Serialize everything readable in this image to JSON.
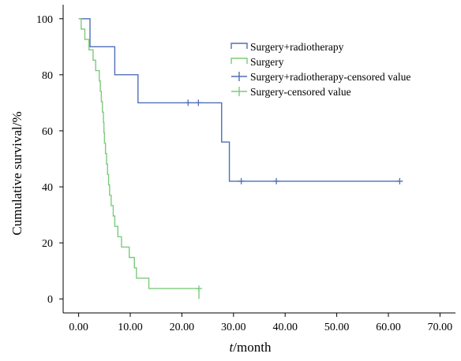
{
  "chart_data": {
    "type": "line",
    "subtype": "kaplan-meier step plot",
    "title": "",
    "xlabel": {
      "italic_part": "t",
      "rest": "/month"
    },
    "ylabel": "Cumulative survival/%",
    "xlim": [
      -3,
      73
    ],
    "ylim": [
      -5,
      105
    ],
    "x_ticks": [
      0,
      10,
      20,
      30,
      40,
      50,
      60,
      70
    ],
    "x_tick_labels": [
      "0.00",
      "10.00",
      "20.00",
      "30.00",
      "40.00",
      "50.00",
      "60.00",
      "70.00"
    ],
    "y_ticks": [
      0,
      20,
      40,
      60,
      80,
      100
    ],
    "y_tick_labels": [
      "0",
      "20",
      "40",
      "60",
      "80",
      "100"
    ],
    "grid": false,
    "legend_position": "top-right",
    "colors": {
      "surgery_radiotherapy": "#4F6FB8",
      "surgery": "#7CCB7C",
      "axis": "#000000"
    },
    "legend": [
      {
        "label": "Surgery+radiotherapy",
        "kind": "step",
        "color_key": "surgery_radiotherapy"
      },
      {
        "label": "Surgery",
        "kind": "step",
        "color_key": "surgery"
      },
      {
        "label": "Surgery+radiotherapy-censored value",
        "kind": "censor",
        "color_key": "surgery_radiotherapy"
      },
      {
        "label": "Surgery-censored value",
        "kind": "censor",
        "color_key": "surgery"
      }
    ],
    "series": [
      {
        "name": "Surgery+radiotherapy",
        "color_key": "surgery_radiotherapy",
        "steps": [
          {
            "x": 0,
            "y": 100
          },
          {
            "x": 2.2,
            "y": 90
          },
          {
            "x": 7,
            "y": 80
          },
          {
            "x": 11.5,
            "y": 70
          },
          {
            "x": 27.7,
            "y": 56
          },
          {
            "x": 29.2,
            "y": 42
          },
          {
            "x": 62.2,
            "y": 42
          }
        ],
        "censored": [
          {
            "x": 21.2,
            "y": 70
          },
          {
            "x": 23.2,
            "y": 70
          },
          {
            "x": 31.5,
            "y": 42
          },
          {
            "x": 38.3,
            "y": 42
          },
          {
            "x": 62.2,
            "y": 42
          }
        ]
      },
      {
        "name": "Surgery",
        "color_key": "surgery",
        "steps": [
          {
            "x": 0,
            "y": 100
          },
          {
            "x": 0.5,
            "y": 96.3
          },
          {
            "x": 1.2,
            "y": 92.6
          },
          {
            "x": 2.0,
            "y": 88.9
          },
          {
            "x": 2.8,
            "y": 85.2
          },
          {
            "x": 3.3,
            "y": 81.5
          },
          {
            "x": 4.0,
            "y": 77.8
          },
          {
            "x": 4.2,
            "y": 74.1
          },
          {
            "x": 4.4,
            "y": 70.4
          },
          {
            "x": 4.6,
            "y": 66.7
          },
          {
            "x": 4.8,
            "y": 63.0
          },
          {
            "x": 4.9,
            "y": 59.3
          },
          {
            "x": 5.0,
            "y": 55.6
          },
          {
            "x": 5.2,
            "y": 51.9
          },
          {
            "x": 5.4,
            "y": 48.1
          },
          {
            "x": 5.6,
            "y": 44.4
          },
          {
            "x": 5.8,
            "y": 40.7
          },
          {
            "x": 6.0,
            "y": 37.0
          },
          {
            "x": 6.3,
            "y": 33.3
          },
          {
            "x": 6.7,
            "y": 29.6
          },
          {
            "x": 7.0,
            "y": 25.9
          },
          {
            "x": 7.6,
            "y": 22.2
          },
          {
            "x": 8.3,
            "y": 18.5
          },
          {
            "x": 9.8,
            "y": 14.8
          },
          {
            "x": 10.8,
            "y": 11.1
          },
          {
            "x": 11.2,
            "y": 7.4
          },
          {
            "x": 13.6,
            "y": 3.7
          },
          {
            "x": 23.3,
            "y": 0
          }
        ],
        "censored": [
          {
            "x": 23.3,
            "y": 3.7
          }
        ]
      }
    ]
  }
}
